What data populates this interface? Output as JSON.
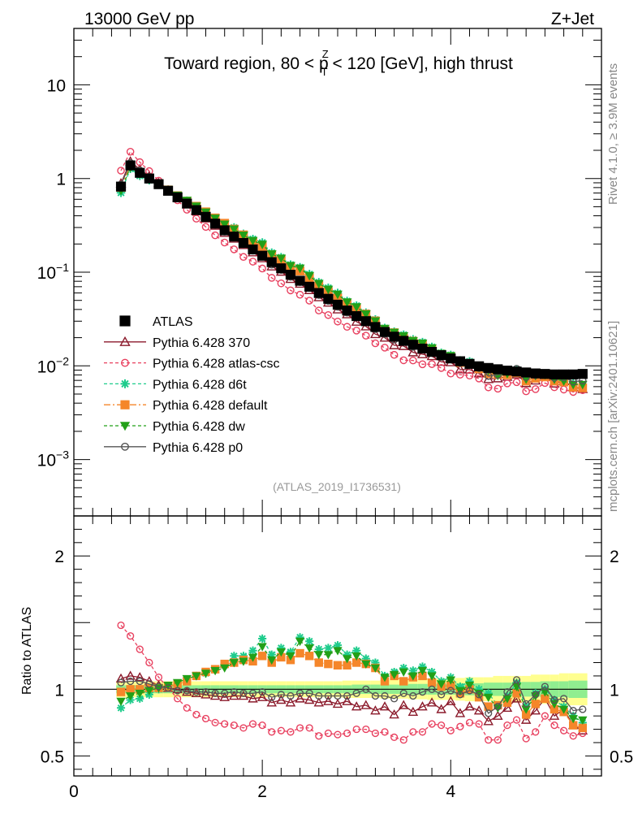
{
  "header": {
    "left_label": "13000 GeV pp",
    "right_label": "Z+Jet",
    "plot_title_pre": "Toward region, 80 < p",
    "plot_title_sup": "Z",
    "plot_title_sub": "T",
    "plot_title_post": " < 120 [GeV], high thrust",
    "rivet_label": "Rivet 4.1.0, ≥ 3.9M events",
    "mcplots_label": "mcplots.cern.ch [arXiv:2401.10621]",
    "analysis_label": "(ATLAS_2019_I1736531)"
  },
  "colors": {
    "atlas": "#000000",
    "p370": "#8b1a2b",
    "atlas_csc": "#e8405f",
    "d6t": "#1ecc8c",
    "default": "#f5862a",
    "dw": "#22a018",
    "p0": "#555555",
    "band_green": "#90ee90",
    "band_yellow": "#ffff90"
  },
  "chart_data": {
    "type": "scatter",
    "main_panel": {
      "yscale": "log",
      "ylim": [
        0.00025,
        40
      ],
      "xlim": [
        0,
        5.6
      ],
      "yticks": [
        {
          "value": 10,
          "base": "10",
          "exp": ""
        },
        {
          "value": 1,
          "base": "1",
          "exp": ""
        },
        {
          "value": 0.1,
          "base": "10",
          "exp": "−1"
        },
        {
          "value": 0.01,
          "base": "10",
          "exp": "−2"
        },
        {
          "value": 0.001,
          "base": "10",
          "exp": "−3"
        }
      ]
    },
    "ratio_panel": {
      "ylabel": "Ratio to ATLAS",
      "ylim": [
        0.35,
        2.3
      ],
      "yticks": [
        {
          "value": 2,
          "label": "2"
        },
        {
          "value": 1,
          "label": "1"
        },
        {
          "value": 0.5,
          "label": "0.5"
        }
      ],
      "xticks": [
        {
          "value": 0,
          "label": "0"
        },
        {
          "value": 2,
          "label": "2"
        },
        {
          "value": 4,
          "label": "4"
        }
      ]
    },
    "x": [
      0.5,
      0.6,
      0.7,
      0.8,
      0.9,
      1.0,
      1.1,
      1.2,
      1.3,
      1.4,
      1.5,
      1.6,
      1.7,
      1.8,
      1.9,
      2.0,
      2.1,
      2.2,
      2.3,
      2.4,
      2.5,
      2.6,
      2.7,
      2.8,
      2.9,
      3.0,
      3.1,
      3.2,
      3.3,
      3.4,
      3.5,
      3.6,
      3.7,
      3.8,
      3.9,
      4.0,
      4.1,
      4.2,
      4.3,
      4.4,
      4.5,
      4.6,
      4.7,
      4.8,
      4.9,
      5.0,
      5.1,
      5.2,
      5.3,
      5.4
    ],
    "band": {
      "green_half": [
        0.03,
        0.03,
        0.03,
        0.03,
        0.03,
        0.03,
        0.03,
        0.03,
        0.03,
        0.03,
        0.03,
        0.03,
        0.03,
        0.03,
        0.03,
        0.03,
        0.03,
        0.03,
        0.03,
        0.03,
        0.03,
        0.03,
        0.03,
        0.03,
        0.03,
        0.035,
        0.035,
        0.035,
        0.035,
        0.035,
        0.035,
        0.04,
        0.04,
        0.04,
        0.04,
        0.04,
        0.045,
        0.045,
        0.045,
        0.05,
        0.05,
        0.05,
        0.05,
        0.055,
        0.055,
        0.06,
        0.06,
        0.06,
        0.065,
        0.065
      ],
      "yellow_half": [
        0.06,
        0.06,
        0.06,
        0.06,
        0.06,
        0.06,
        0.06,
        0.06,
        0.06,
        0.06,
        0.06,
        0.06,
        0.06,
        0.06,
        0.06,
        0.06,
        0.06,
        0.06,
        0.06,
        0.06,
        0.06,
        0.06,
        0.06,
        0.06,
        0.065,
        0.065,
        0.065,
        0.065,
        0.07,
        0.07,
        0.07,
        0.075,
        0.075,
        0.08,
        0.08,
        0.08,
        0.085,
        0.09,
        0.09,
        0.09,
        0.1,
        0.1,
        0.1,
        0.1,
        0.11,
        0.11,
        0.11,
        0.12,
        0.12,
        0.12
      ]
    },
    "atlas_values": [
      0.82,
      1.38,
      1.15,
      1.0,
      0.87,
      0.74,
      0.63,
      0.54,
      0.46,
      0.39,
      0.33,
      0.28,
      0.24,
      0.205,
      0.175,
      0.15,
      0.128,
      0.11,
      0.094,
      0.081,
      0.07,
      0.06,
      0.052,
      0.045,
      0.039,
      0.034,
      0.03,
      0.026,
      0.023,
      0.0205,
      0.0185,
      0.0168,
      0.0153,
      0.0141,
      0.013,
      0.012,
      0.0112,
      0.0105,
      0.0099,
      0.0095,
      0.0092,
      0.0089,
      0.0087,
      0.0085,
      0.0083,
      0.0082,
      0.0081,
      0.0081,
      0.0081,
      0.0082
    ],
    "series": [
      {
        "name": "ATLAS",
        "style": "atlas",
        "values_key": "atlas_values",
        "ratio": [
          1,
          1,
          1,
          1,
          1,
          1,
          1,
          1,
          1,
          1,
          1,
          1,
          1,
          1,
          1,
          1,
          1,
          1,
          1,
          1,
          1,
          1,
          1,
          1,
          1,
          1,
          1,
          1,
          1,
          1,
          1,
          1,
          1,
          1,
          1,
          1,
          1,
          1,
          1,
          1,
          1,
          1,
          1,
          1,
          1,
          1,
          1,
          1,
          1,
          1
        ]
      },
      {
        "name": "Pythia 6.428 370",
        "style": "p370",
        "ratio": [
          1.08,
          1.1,
          1.09,
          1.06,
          1.03,
          1.01,
          1.0,
          0.98,
          0.97,
          0.96,
          0.95,
          0.94,
          0.95,
          0.95,
          0.93,
          0.94,
          0.9,
          0.92,
          0.9,
          0.93,
          0.92,
          0.9,
          0.91,
          0.89,
          0.91,
          0.87,
          0.88,
          0.84,
          0.87,
          0.81,
          0.88,
          0.83,
          0.87,
          0.9,
          0.85,
          0.91,
          0.82,
          0.87,
          0.84,
          0.76,
          0.8,
          0.86,
          0.93,
          0.77,
          0.84,
          0.93,
          0.8,
          0.85,
          0.73,
          0.69
        ]
      },
      {
        "name": "Pythia 6.428 atlas-csc",
        "style": "atlas_csc",
        "ratio": [
          1.48,
          1.4,
          1.3,
          1.2,
          1.09,
          1.01,
          0.93,
          0.86,
          0.81,
          0.78,
          0.75,
          0.74,
          0.73,
          0.71,
          0.74,
          0.73,
          0.68,
          0.69,
          0.68,
          0.71,
          0.71,
          0.65,
          0.67,
          0.66,
          0.67,
          0.7,
          0.7,
          0.67,
          0.68,
          0.64,
          0.62,
          0.68,
          0.68,
          0.74,
          0.73,
          0.69,
          0.72,
          0.75,
          0.74,
          0.62,
          0.62,
          0.73,
          0.77,
          0.63,
          0.68,
          0.8,
          0.73,
          0.69,
          0.65,
          0.67
        ]
      },
      {
        "name": "Pythia 6.428 d6t",
        "style": "d6t",
        "ratio": [
          0.86,
          0.92,
          0.93,
          0.96,
          1.0,
          1.02,
          1.04,
          1.07,
          1.1,
          1.12,
          1.15,
          1.18,
          1.25,
          1.25,
          1.29,
          1.38,
          1.26,
          1.31,
          1.28,
          1.39,
          1.36,
          1.3,
          1.31,
          1.33,
          1.26,
          1.29,
          1.23,
          1.2,
          1.1,
          1.13,
          1.16,
          1.14,
          1.17,
          1.13,
          1.06,
          1.09,
          1.02,
          1.06,
          1.0,
          0.97,
          0.88,
          0.95,
          1.05,
          0.87,
          0.97,
          1.0,
          0.92,
          0.87,
          0.8,
          0.75
        ]
      },
      {
        "name": "Pythia 6.428 default",
        "style": "default",
        "ratio": [
          0.98,
          1.0,
          1.0,
          1.01,
          1.01,
          1.02,
          1.04,
          1.06,
          1.1,
          1.13,
          1.15,
          1.19,
          1.2,
          1.22,
          1.21,
          1.25,
          1.2,
          1.24,
          1.22,
          1.27,
          1.25,
          1.2,
          1.19,
          1.18,
          1.18,
          1.2,
          1.19,
          1.16,
          1.06,
          1.1,
          1.06,
          1.09,
          1.1,
          1.05,
          1.02,
          1.03,
          0.97,
          1.0,
          0.94,
          0.87,
          0.88,
          0.9,
          0.97,
          0.81,
          0.89,
          0.93,
          0.85,
          0.83,
          0.73,
          0.71
        ]
      },
      {
        "name": "Pythia 6.428 dw",
        "style": "dw",
        "ratio": [
          0.91,
          0.95,
          0.97,
          0.99,
          1.01,
          1.03,
          1.05,
          1.08,
          1.1,
          1.12,
          1.14,
          1.16,
          1.2,
          1.21,
          1.24,
          1.32,
          1.22,
          1.28,
          1.25,
          1.36,
          1.31,
          1.26,
          1.26,
          1.29,
          1.23,
          1.25,
          1.19,
          1.16,
          1.09,
          1.11,
          1.13,
          1.1,
          1.14,
          1.1,
          1.04,
          1.07,
          0.99,
          1.03,
          0.97,
          0.94,
          0.86,
          0.93,
          1.02,
          0.85,
          0.95,
          0.98,
          0.89,
          0.85,
          0.78,
          0.77
        ]
      },
      {
        "name": "Pythia 6.428 p0",
        "style": "p0",
        "ratio": [
          1.05,
          1.06,
          1.06,
          1.04,
          1.02,
          1.01,
          0.99,
          0.99,
          0.98,
          0.98,
          0.97,
          0.97,
          0.98,
          0.97,
          0.97,
          0.98,
          0.94,
          0.96,
          0.95,
          0.97,
          0.97,
          0.95,
          0.95,
          0.95,
          0.95,
          0.97,
          1.0,
          0.95,
          0.95,
          0.93,
          0.97,
          0.95,
          0.98,
          1.0,
          0.96,
          0.99,
          0.96,
          0.99,
          0.96,
          0.82,
          0.87,
          0.98,
          1.07,
          0.89,
          0.96,
          1.02,
          0.92,
          0.93,
          0.84,
          0.85
        ]
      }
    ]
  }
}
